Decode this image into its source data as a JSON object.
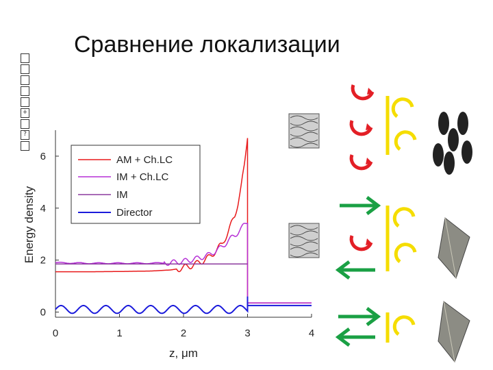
{
  "slide": {
    "title": "Сравнение локализации",
    "side_glyphs": [
      "",
      "",
      "",
      "",
      "",
      "+",
      "",
      "?",
      ""
    ]
  },
  "chart_data": {
    "type": "line",
    "xlabel": "z, μm",
    "ylabel": "Energy density",
    "xlim": [
      0,
      4
    ],
    "ylim": [
      -0.2,
      7
    ],
    "xticks": [
      "0",
      "1",
      "2",
      "3",
      "4"
    ],
    "yticks": [
      "0",
      "2",
      "4",
      "6"
    ],
    "grid": false,
    "legend_position": "top-left",
    "series": [
      {
        "name": "AM + Ch.LC",
        "color": "#e8191a",
        "x": [
          0,
          0.5,
          1.0,
          1.5,
          1.8,
          2.0,
          2.2,
          2.4,
          2.5,
          2.6,
          2.7,
          2.8,
          2.85,
          2.9,
          2.95,
          2.98,
          3.0
        ],
        "y": [
          1.55,
          1.55,
          1.56,
          1.58,
          1.62,
          1.7,
          1.85,
          2.1,
          2.35,
          2.6,
          3.1,
          3.7,
          4.2,
          4.8,
          5.6,
          6.3,
          6.8
        ]
      },
      {
        "name": "IM + Ch.LC",
        "color": "#b52fd6",
        "x": [
          0,
          0.5,
          1.0,
          1.5,
          1.8,
          2.0,
          2.2,
          2.4,
          2.5,
          2.6,
          2.7,
          2.8,
          2.9,
          3.0
        ],
        "y": [
          1.9,
          1.88,
          1.88,
          1.88,
          1.9,
          1.95,
          2.05,
          2.2,
          2.35,
          2.5,
          2.75,
          2.95,
          3.2,
          3.5
        ]
      },
      {
        "name": "IM",
        "color": "#8b3a9e",
        "x": [
          0,
          3.0
        ],
        "y": [
          1.85,
          1.85
        ]
      },
      {
        "name": "Director",
        "color": "#1a1adb",
        "x": [
          0,
          3.0,
          3.0,
          4.0
        ],
        "y": [
          0.15,
          0.15,
          0.25,
          0.25
        ]
      }
    ]
  }
}
